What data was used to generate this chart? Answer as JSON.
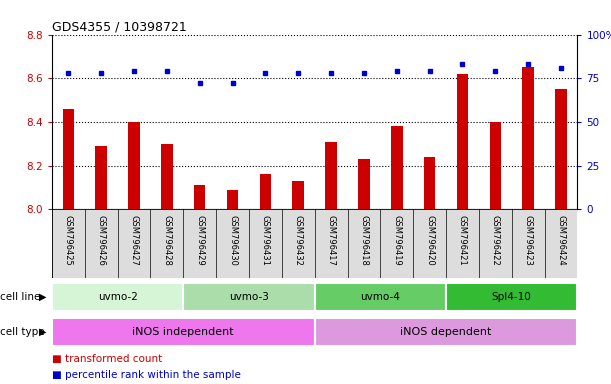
{
  "title": "GDS4355 / 10398721",
  "samples": [
    "GSM796425",
    "GSM796426",
    "GSM796427",
    "GSM796428",
    "GSM796429",
    "GSM796430",
    "GSM796431",
    "GSM796432",
    "GSM796417",
    "GSM796418",
    "GSM796419",
    "GSM796420",
    "GSM796421",
    "GSM796422",
    "GSM796423",
    "GSM796424"
  ],
  "red_values": [
    8.46,
    8.29,
    8.4,
    8.3,
    8.11,
    8.09,
    8.16,
    8.13,
    8.31,
    8.23,
    8.38,
    8.24,
    8.62,
    8.4,
    8.65,
    8.55
  ],
  "blue_values": [
    78,
    78,
    79,
    79,
    72,
    72,
    78,
    78,
    78,
    78,
    79,
    79,
    83,
    79,
    83,
    81
  ],
  "ylim_left": [
    8.0,
    8.8
  ],
  "ylim_right": [
    0,
    100
  ],
  "yticks_left": [
    8.0,
    8.2,
    8.4,
    8.6,
    8.8
  ],
  "yticks_right": [
    0,
    25,
    50,
    75,
    100
  ],
  "cell_lines": [
    {
      "label": "uvmo-2",
      "start": 0,
      "end": 4,
      "color": "#d6f5d6"
    },
    {
      "label": "uvmo-3",
      "start": 4,
      "end": 8,
      "color": "#aaddaa"
    },
    {
      "label": "uvmo-4",
      "start": 8,
      "end": 12,
      "color": "#66cc66"
    },
    {
      "label": "Spl4-10",
      "start": 12,
      "end": 16,
      "color": "#33bb33"
    }
  ],
  "cell_types": [
    {
      "label": "iNOS independent",
      "start": 0,
      "end": 8,
      "color": "#ee77ee"
    },
    {
      "label": "iNOS dependent",
      "start": 8,
      "end": 16,
      "color": "#dd99dd"
    }
  ],
  "bar_color": "#cc0000",
  "dot_color": "#0000cc",
  "left_tick_color": "#cc0000",
  "right_tick_color": "#0000cc",
  "bar_width": 0.35,
  "label_bg_color": "#dddddd",
  "legend_items": [
    {
      "label": "transformed count",
      "color": "#cc0000"
    },
    {
      "label": "percentile rank within the sample",
      "color": "#0000cc"
    }
  ]
}
